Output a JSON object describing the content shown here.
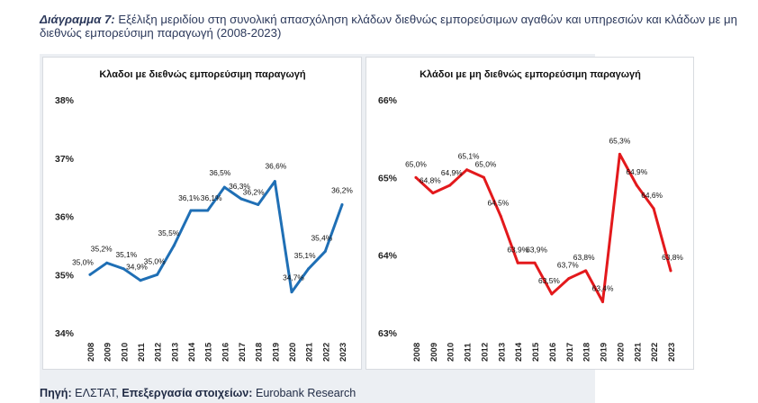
{
  "header": {
    "title_lead": "Διάγραμμα 7:",
    "title_text": " Εξέλιξη μεριδίου στη συνολική απασχόληση κλάδων διεθνώς εμπορεύσιμων αγαθών και υπηρεσιών και κλάδων με μη διεθνώς εμπορεύσιμη παραγωγή (2008-2023)"
  },
  "footer": {
    "source_label": "Πηγή:",
    "source_value": " ΕΛΣΤΑΤ, ",
    "processing_label": "Επεξεργασία στοιχείων:",
    "processing_value": " Eurobank Research"
  },
  "chart_data": [
    {
      "type": "line",
      "title": "Κλαδοι με διεθνώς εμπορεύσιμη παραγωγή",
      "color": "#1f6fb5",
      "x": [
        "2008",
        "2009",
        "2010",
        "2011",
        "2012",
        "2013",
        "2014",
        "2015",
        "2016",
        "2017",
        "2018",
        "2019",
        "2020",
        "2021",
        "2022",
        "2023"
      ],
      "values": [
        35.0,
        35.2,
        35.1,
        34.9,
        35.0,
        35.5,
        36.1,
        36.1,
        36.5,
        36.3,
        36.2,
        36.6,
        34.7,
        35.1,
        35.4,
        36.2
      ],
      "data_labels": [
        "35,0%",
        "35,2%",
        "35,1%",
        "34,9%",
        "35,0%",
        "35,5%",
        "36,1%",
        "36,1%",
        "36,5%",
        "36,3%",
        "36,2%",
        "36,6%",
        "34,7%",
        "35,1%",
        "35,4%",
        "36,2%"
      ],
      "ylim": [
        34,
        38
      ],
      "yticks": [
        "34%",
        "35%",
        "36%",
        "37%",
        "38%"
      ],
      "grid": false,
      "legend": "none"
    },
    {
      "type": "line",
      "title": "Κλάδοι με μη διεθνώς εμπορεύσιμη παραγωγή",
      "color": "#e3191c",
      "x": [
        "2008",
        "2009",
        "2010",
        "2011",
        "2012",
        "2013",
        "2014",
        "2015",
        "2016",
        "2017",
        "2018",
        "2019",
        "2020",
        "2021",
        "2022",
        "2023"
      ],
      "values": [
        65.0,
        64.8,
        64.9,
        65.1,
        65.0,
        64.5,
        63.9,
        63.9,
        63.5,
        63.7,
        63.8,
        63.4,
        65.3,
        64.9,
        64.6,
        63.8
      ],
      "data_labels": [
        "65,0%",
        "64,8%",
        "64,9%",
        "65,1%",
        "65,0%",
        "64,5%",
        "63,9%",
        "63,9%",
        "63,5%",
        "63,7%",
        "63,8%",
        "63,4%",
        "65,3%",
        "64,9%",
        "64,6%",
        "63,8%"
      ],
      "ylim": [
        63,
        66
      ],
      "yticks": [
        "63%",
        "64%",
        "65%",
        "66%"
      ],
      "grid": false,
      "legend": "none"
    }
  ]
}
